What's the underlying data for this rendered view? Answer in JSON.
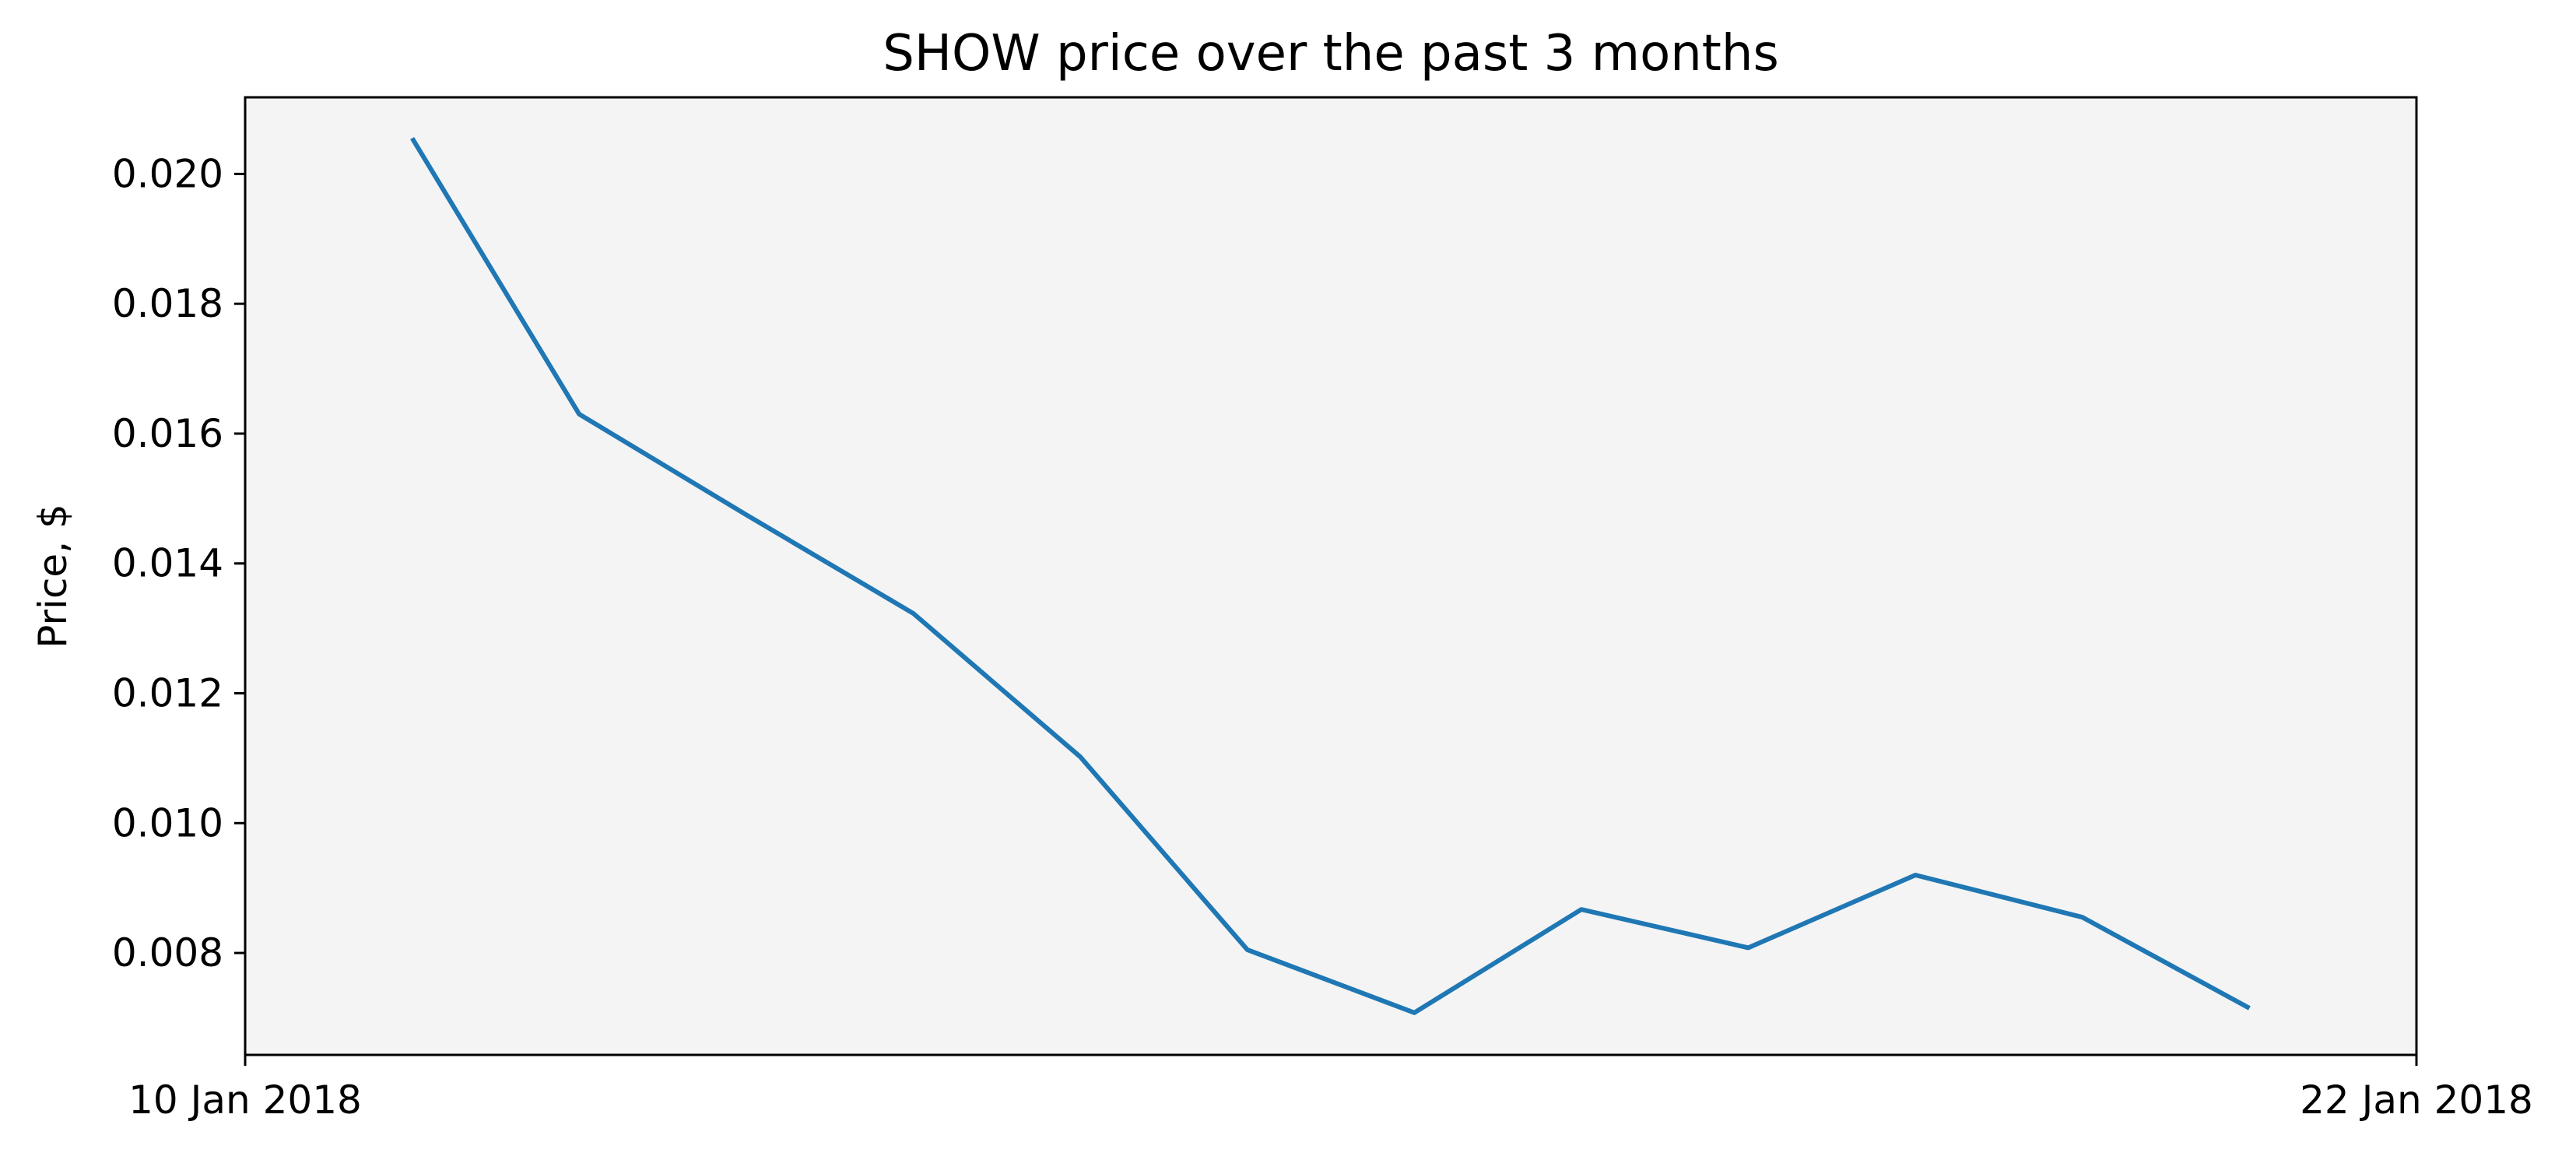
{
  "chart_data": {
    "type": "line",
    "title": "SHOW price over the past 3 months",
    "xlabel": "",
    "ylabel": "Price, $",
    "x": [
      "2018-01-10",
      "2018-01-11",
      "2018-01-12",
      "2018-01-13",
      "2018-01-14",
      "2018-01-15",
      "2018-01-16",
      "2018-01-17",
      "2018-01-18",
      "2018-01-19",
      "2018-01-20",
      "2018-01-21"
    ],
    "x_tick_labels": [
      "10 Jan 2018",
      "22 Jan 2018"
    ],
    "series": [
      {
        "values": [
          0.02055,
          0.0163,
          0.01475,
          0.01323,
          0.01102,
          0.00805,
          0.00708,
          0.00867,
          0.00808,
          0.0092,
          0.00855,
          0.00715
        ]
      }
    ],
    "xlim": [
      "2018-01-09",
      "2018-01-22"
    ],
    "ylim": [
      0.00643,
      0.02118
    ],
    "y_ticks": [
      0.008,
      0.01,
      0.012,
      0.014,
      0.016,
      0.018,
      0.02
    ],
    "y_tick_labels": [
      "0.008",
      "0.010",
      "0.012",
      "0.014",
      "0.016",
      "0.018",
      "0.020"
    ],
    "grid": false,
    "legend": "none",
    "colors": {
      "line": "#1f77b4",
      "plot_background": "#f4f4f4",
      "axes": "#000000"
    }
  }
}
